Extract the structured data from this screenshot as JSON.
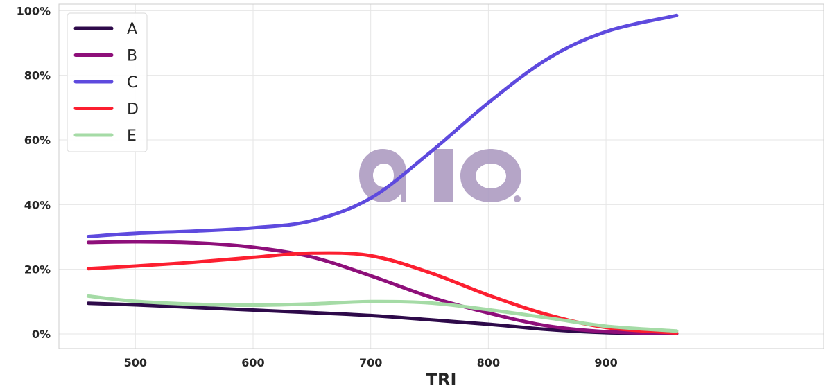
{
  "chart_data": {
    "type": "line",
    "xlabel": "TRI",
    "ylabel": "",
    "xlim": [
      435,
      1085
    ],
    "ylim": [
      -0.045,
      1.02
    ],
    "xticks": [
      500,
      600,
      700,
      800,
      900
    ],
    "yticks": [
      0,
      0.2,
      0.4,
      0.6,
      0.8,
      1.0
    ],
    "ytick_labels": [
      "0%",
      "20%",
      "40%",
      "60%",
      "80%",
      "100%"
    ],
    "grid": true,
    "legend_position": "top-left",
    "x": [
      460,
      500,
      550,
      600,
      650,
      700,
      750,
      800,
      850,
      900,
      960
    ],
    "series": [
      {
        "name": "A",
        "color": "#2e0a4a",
        "values": [
          0.095,
          0.09,
          0.082,
          0.074,
          0.066,
          0.057,
          0.044,
          0.03,
          0.014,
          0.004,
          0.001
        ]
      },
      {
        "name": "B",
        "color": "#8e0f7a",
        "values": [
          0.283,
          0.285,
          0.282,
          0.268,
          0.238,
          0.18,
          0.115,
          0.065,
          0.025,
          0.007,
          0.001
        ]
      },
      {
        "name": "C",
        "color": "#5e4ade",
        "values": [
          0.301,
          0.311,
          0.318,
          0.328,
          0.35,
          0.42,
          0.56,
          0.715,
          0.85,
          0.935,
          0.985
        ]
      },
      {
        "name": "D",
        "color": "#fc1f30",
        "values": [
          0.202,
          0.21,
          0.222,
          0.237,
          0.25,
          0.242,
          0.19,
          0.12,
          0.06,
          0.02,
          0.003
        ]
      },
      {
        "name": "E",
        "color": "#a5dba6",
        "values": [
          0.117,
          0.101,
          0.092,
          0.089,
          0.093,
          0.1,
          0.096,
          0.075,
          0.05,
          0.024,
          0.009
        ]
      }
    ]
  },
  "watermark": {
    "text": "aio",
    "color": "#ad9cc2"
  }
}
